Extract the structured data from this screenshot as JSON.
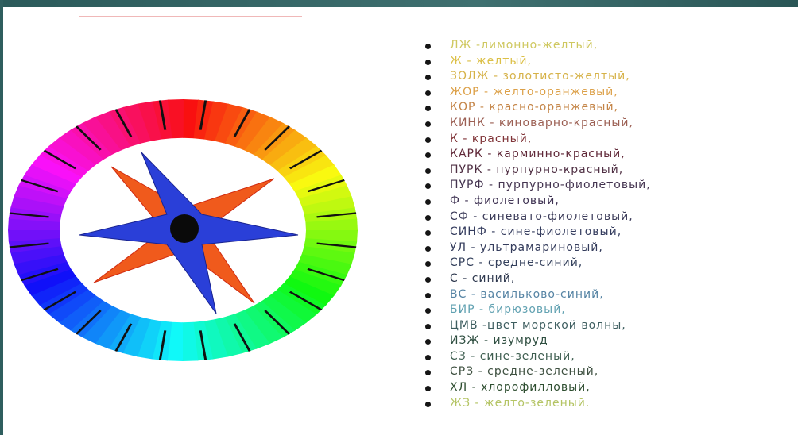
{
  "items": [
    {
      "text": "ЛЖ -лимонно-желтый,",
      "color": "#cfc860"
    },
    {
      "text": "Ж - желтый,",
      "color": "#dcc048"
    },
    {
      "text": "ЗОЛЖ - золотисто-желтый,",
      "color": "#d6b248"
    },
    {
      "text": "ЖОР - желто-оранжевый,",
      "color": "#dca048"
    },
    {
      "text": "КОР - красно-оранжевый,",
      "color": "#c48446"
    },
    {
      "text": "КИНК - киноварно-красный,",
      "color": "#9c6054"
    },
    {
      "text": "К - красный,",
      "color": "#803438"
    },
    {
      "text": "КАРК - карминно-красный,",
      "color": "#602838"
    },
    {
      "text": "ПУРК - пурпурно-красный,",
      "color": "#503044"
    },
    {
      "text": "ПУРФ - пурпурно-фиолетовый,",
      "color": "#443450"
    },
    {
      "text": "Ф - фиолетовый,",
      "color": "#403454"
    },
    {
      "text": "СФ - синевато-фиолетовый,",
      "color": "#3a3a58"
    },
    {
      "text": "СИНФ - сине-фиолетовый,",
      "color": "#343c5e"
    },
    {
      "text": "УЛ - ультрамариновый,",
      "color": "#343c5c"
    },
    {
      "text": "СРС - средне-синий,",
      "color": "#34405c"
    },
    {
      "text": "С - синий,",
      "color": "#303a50"
    },
    {
      "text": "ВС - васильково-синий,",
      "color": "#5684a4"
    },
    {
      "text": "БИР - бирюзовый,",
      "color": "#62a2b2"
    },
    {
      "text": "ЦМВ -цвет морской волны,",
      "color": "#3e5e60"
    },
    {
      "text": "ИЗЖ - изумруд",
      "color": "#2e4e40"
    },
    {
      "text": "СЗ - сине-зеленый,",
      "color": "#3e5e50"
    },
    {
      "text": "СРЗ - средне-зеленый,",
      "color": "#3e5040"
    },
    {
      "text": "ХЛ - хлорофилловый,",
      "color": "#2e4e30"
    },
    {
      "text": "ЖЗ - желто-зеленый.",
      "color": "#b4c464"
    }
  ]
}
